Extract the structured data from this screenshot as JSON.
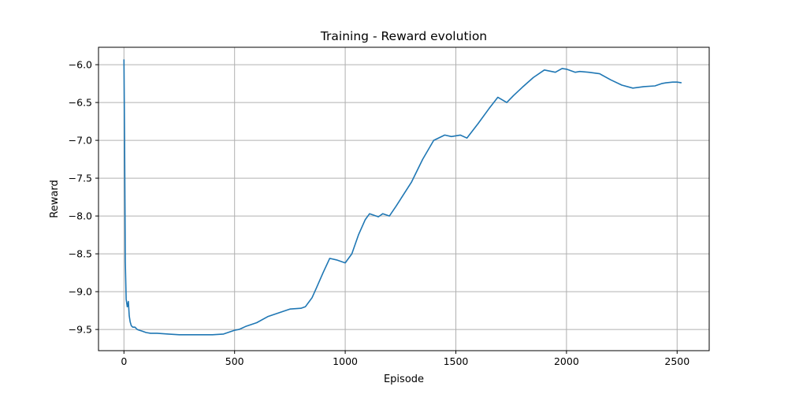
{
  "chart_data": {
    "type": "line",
    "title": "Training - Reward evolution",
    "xlabel": "Episode",
    "ylabel": "Reward",
    "xlim": [
      -115,
      2645
    ],
    "ylim": [
      -9.78,
      -5.77
    ],
    "grid": true,
    "x_ticks": [
      0,
      500,
      1000,
      1500,
      2000,
      2500
    ],
    "x_tick_labels": [
      "0",
      "500",
      "1000",
      "1500",
      "2000",
      "2500"
    ],
    "y_ticks": [
      -6.0,
      -6.5,
      -7.0,
      -7.5,
      -8.0,
      -8.5,
      -9.0,
      -9.5
    ],
    "y_tick_labels": [
      "−6.0",
      "−6.5",
      "−7.0",
      "−7.5",
      "−8.0",
      "−8.5",
      "−9.0",
      "−9.5"
    ],
    "colors": {
      "line": "#1f77b4",
      "grid": "#b0b0b0",
      "axes": "#000000"
    },
    "series": [
      {
        "x": [
          0,
          3,
          6,
          10,
          15,
          20,
          24,
          28,
          33,
          40,
          50,
          60,
          70,
          80,
          100,
          120,
          150,
          200,
          250,
          280,
          300,
          350,
          400,
          450,
          480,
          500,
          520,
          550,
          600,
          650,
          700,
          750,
          800,
          820,
          850,
          870,
          900,
          930,
          960,
          1000,
          1030,
          1060,
          1090,
          1110,
          1150,
          1170,
          1200,
          1230,
          1300,
          1350,
          1400,
          1450,
          1480,
          1520,
          1550,
          1600,
          1650,
          1690,
          1730,
          1760,
          1800,
          1850,
          1900,
          1950,
          1980,
          2000,
          2040,
          2060,
          2100,
          2150,
          2200,
          2250,
          2300,
          2350,
          2400,
          2430,
          2450,
          2480,
          2500,
          2520
        ],
        "y": [
          -5.93,
          -7.0,
          -8.6,
          -9.1,
          -9.2,
          -9.13,
          -9.32,
          -9.4,
          -9.45,
          -9.47,
          -9.47,
          -9.5,
          -9.51,
          -9.52,
          -9.54,
          -9.55,
          -9.55,
          -9.56,
          -9.57,
          -9.57,
          -9.57,
          -9.57,
          -9.57,
          -9.56,
          -9.53,
          -9.51,
          -9.5,
          -9.46,
          -9.41,
          -9.33,
          -9.28,
          -9.23,
          -9.22,
          -9.2,
          -9.08,
          -8.95,
          -8.75,
          -8.56,
          -8.58,
          -8.62,
          -8.5,
          -8.25,
          -8.05,
          -7.97,
          -8.01,
          -7.97,
          -8.0,
          -7.87,
          -7.55,
          -7.25,
          -7.0,
          -6.93,
          -6.95,
          -6.93,
          -6.97,
          -6.78,
          -6.58,
          -6.43,
          -6.5,
          -6.41,
          -6.3,
          -6.17,
          -6.07,
          -6.1,
          -6.05,
          -6.06,
          -6.1,
          -6.09,
          -6.1,
          -6.12,
          -6.2,
          -6.27,
          -6.31,
          -6.29,
          -6.28,
          -6.25,
          -6.24,
          -6.23,
          -6.23,
          -6.24
        ]
      }
    ]
  }
}
